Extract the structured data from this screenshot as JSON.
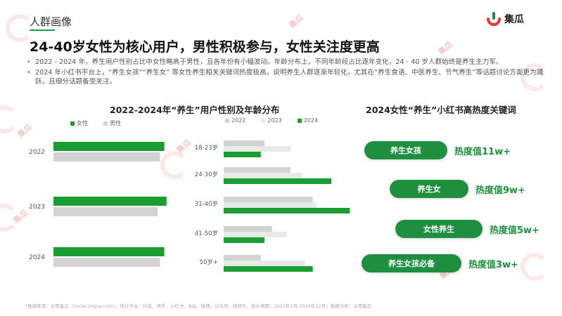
{
  "header": {
    "section_title": "人群画像",
    "logo_text": "集瓜",
    "headline": "24-40岁女性为核心用户，男性积极参与，女性关注度更高"
  },
  "bullets": [
    "2022 - 2024 年，养生用户性别占比中女性略高于男性，且各年份有小幅波动。年龄分布上，不同年龄段占比逐年变化，24 - 40 岁人群始终是养生主力军。",
    "2024 年小红书平台上，“养生女孩”“养生女” 等女性养生相关关键词热度极高，说明养生人群逐渐年轻化，尤其在“养生食语、中医养生、节气养生”等话题讨论方面更为踊跃，且细分话题备受关注。"
  ],
  "watermark": "集瓜",
  "footnote": "*数据来源：从零集瓜（social.jingua.com），统计平台：抖音、快手、小红书、B站、微博，公众号、视频号，统计周期：2022年1月-2024年12月；数据分析：从零集瓜",
  "colors": {
    "green": "#1e8f3e",
    "bar_green": "#1a9e34",
    "gray": "#d3d3d3",
    "light_gray": "#e5ece5"
  },
  "chart_data": [
    {
      "type": "bar",
      "orientation": "horizontal",
      "title": "2022-2024年“养生”用户性别及年龄分布",
      "categories": [
        "2022",
        "2023",
        "2024"
      ],
      "series": [
        {
          "name": "女性",
          "color": "#1a9e34",
          "values": [
            0.51,
            0.52,
            0.51
          ]
        },
        {
          "name": "男性",
          "color": "#d3d3d3",
          "values": [
            0.49,
            0.48,
            0.49
          ]
        }
      ],
      "legend": "top-left",
      "xlim": [
        0,
        0.55
      ]
    },
    {
      "type": "bar",
      "orientation": "horizontal",
      "categories": [
        "18-23岁",
        "24-30岁",
        "31-40岁",
        "41-50岁",
        "50岁+"
      ],
      "series": [
        {
          "name": "2022",
          "color": "#d3d3d3",
          "values": [
            0.11,
            0.18,
            0.24,
            0.13,
            0.1
          ]
        },
        {
          "name": "2023",
          "color": "#e5ece5",
          "values": [
            0.18,
            0.21,
            0.25,
            0.17,
            0.22
          ]
        },
        {
          "name": "2024",
          "color": "#1a9e34",
          "values": [
            0.1,
            0.29,
            0.34,
            0.11,
            0.24
          ]
        }
      ],
      "legend": "top-left",
      "xlim": [
        0,
        0.36
      ]
    },
    {
      "type": "table",
      "title": "2024女性“养生”小红书高热度关键词",
      "rows": [
        {
          "keyword": "养生女孩",
          "heat": "热度值11w+"
        },
        {
          "keyword": "养生女",
          "heat": "热度值9w+"
        },
        {
          "keyword": "女性养生",
          "heat": "热度值5w+"
        },
        {
          "keyword": "养生女孩必备",
          "heat": "热度值3w+"
        }
      ]
    }
  ]
}
